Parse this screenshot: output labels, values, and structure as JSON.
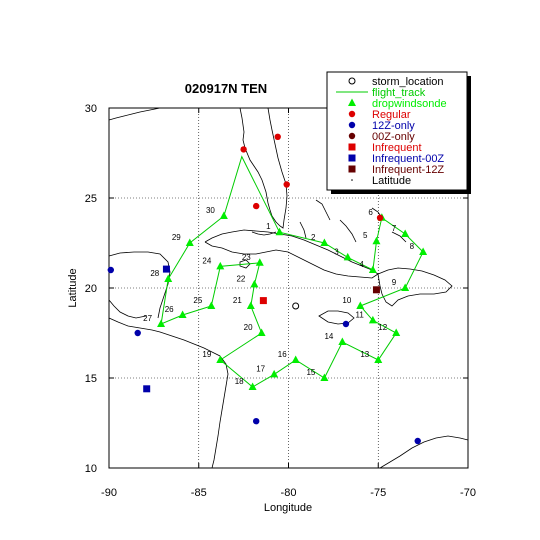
{
  "chart_data": {
    "type": "scatter",
    "title": "020917N TEN",
    "xlabel": "Longitude",
    "ylabel": "Latitude",
    "xlim": [
      -90,
      -70
    ],
    "ylim": [
      10,
      30
    ],
    "xticks": [
      -90,
      -85,
      -80,
      -75,
      -70
    ],
    "yticks": [
      10,
      15,
      20,
      25,
      30
    ],
    "xtick_labels": [
      "-90",
      "-85",
      "-80",
      "-75",
      "-70"
    ],
    "ytick_labels": [
      "10",
      "15",
      "20",
      "25",
      "30"
    ],
    "grid": "dotted",
    "legend_position": "top-right",
    "legend": [
      {
        "label": "storm_location",
        "marker": "circle-open",
        "color": "#000000"
      },
      {
        "label": "flight_track",
        "marker": "line",
        "color": "#00cc00"
      },
      {
        "label": "dropwindsonde",
        "marker": "triangle",
        "color": "#00ee00"
      },
      {
        "label": "Regular",
        "marker": "circle",
        "color": "#dd0000"
      },
      {
        "label": "12Z-only",
        "marker": "circle",
        "color": "#0000aa"
      },
      {
        "label": "00Z-only",
        "marker": "circle",
        "color": "#660000"
      },
      {
        "label": "Infrequent",
        "marker": "square",
        "color": "#dd0000"
      },
      {
        "label": "Infrequent-00Z",
        "marker": "square",
        "color": "#0000aa"
      },
      {
        "label": "Infrequent-12Z",
        "marker": "square",
        "color": "#660000"
      },
      {
        "label": "Latitude",
        "marker": "dot",
        "color": "#000000"
      }
    ],
    "storm_location": {
      "lon": -79.6,
      "lat": 19.0
    },
    "flight_track": [
      {
        "lon": -80.5,
        "lat": 23.1
      },
      {
        "lon": -78.0,
        "lat": 22.5
      },
      {
        "lon": -76.7,
        "lat": 21.7
      },
      {
        "lon": -75.3,
        "lat": 21.0
      },
      {
        "lon": -75.1,
        "lat": 22.6
      },
      {
        "lon": -74.8,
        "lat": 23.9
      },
      {
        "lon": -73.5,
        "lat": 23.0
      },
      {
        "lon": -72.5,
        "lat": 22.0
      },
      {
        "lon": -73.5,
        "lat": 20.0
      },
      {
        "lon": -76.0,
        "lat": 19.0
      },
      {
        "lon": -75.3,
        "lat": 18.2
      },
      {
        "lon": -74.0,
        "lat": 17.5
      },
      {
        "lon": -75.0,
        "lat": 16.0
      },
      {
        "lon": -77.0,
        "lat": 17.0
      },
      {
        "lon": -78.0,
        "lat": 15.0
      },
      {
        "lon": -79.6,
        "lat": 16.0
      },
      {
        "lon": -80.8,
        "lat": 15.2
      },
      {
        "lon": -82.0,
        "lat": 14.5
      },
      {
        "lon": -83.8,
        "lat": 16.0
      },
      {
        "lon": -81.5,
        "lat": 17.5
      },
      {
        "lon": -82.1,
        "lat": 19.0
      },
      {
        "lon": -81.9,
        "lat": 20.2
      },
      {
        "lon": -81.6,
        "lat": 21.4
      },
      {
        "lon": -83.8,
        "lat": 21.2
      },
      {
        "lon": -84.3,
        "lat": 19.0
      },
      {
        "lon": -85.9,
        "lat": 18.5
      },
      {
        "lon": -87.1,
        "lat": 18.0
      },
      {
        "lon": -86.7,
        "lat": 20.5
      },
      {
        "lon": -85.5,
        "lat": 22.5
      },
      {
        "lon": -83.6,
        "lat": 24.0
      },
      {
        "lon": -82.6,
        "lat": 27.3
      },
      {
        "lon": -80.5,
        "lat": 23.1
      }
    ],
    "dropwindsondes": [
      {
        "label": "1",
        "lon": -80.5,
        "lat": 23.1
      },
      {
        "label": "2",
        "lon": -78.0,
        "lat": 22.5
      },
      {
        "label": "3",
        "lon": -76.7,
        "lat": 21.7
      },
      {
        "label": "4",
        "lon": -75.3,
        "lat": 21.0
      },
      {
        "label": "5",
        "lon": -75.1,
        "lat": 22.6
      },
      {
        "label": "6",
        "lon": -74.8,
        "lat": 23.9
      },
      {
        "label": "7",
        "lon": -73.5,
        "lat": 23.0
      },
      {
        "label": "8",
        "lon": -72.5,
        "lat": 22.0
      },
      {
        "label": "9",
        "lon": -73.5,
        "lat": 20.0
      },
      {
        "label": "10",
        "lon": -76.0,
        "lat": 19.0
      },
      {
        "label": "11",
        "lon": -75.3,
        "lat": 18.2
      },
      {
        "label": "12",
        "lon": -74.0,
        "lat": 17.5
      },
      {
        "label": "13",
        "lon": -75.0,
        "lat": 16.0
      },
      {
        "label": "14",
        "lon": -77.0,
        "lat": 17.0
      },
      {
        "label": "15",
        "lon": -78.0,
        "lat": 15.0
      },
      {
        "label": "16",
        "lon": -79.6,
        "lat": 16.0
      },
      {
        "label": "17",
        "lon": -80.8,
        "lat": 15.2
      },
      {
        "label": "18",
        "lon": -82.0,
        "lat": 14.5
      },
      {
        "label": "19",
        "lon": -83.8,
        "lat": 16.0
      },
      {
        "label": "20",
        "lon": -81.5,
        "lat": 17.5
      },
      {
        "label": "21",
        "lon": -82.1,
        "lat": 19.0
      },
      {
        "label": "22",
        "lon": -81.9,
        "lat": 20.2
      },
      {
        "label": "23",
        "lon": -81.6,
        "lat": 21.4
      },
      {
        "label": "24",
        "lon": -83.8,
        "lat": 21.2
      },
      {
        "label": "25",
        "lon": -84.3,
        "lat": 19.0
      },
      {
        "label": "26",
        "lon": -85.9,
        "lat": 18.5
      },
      {
        "label": "27",
        "lon": -87.1,
        "lat": 18.0
      },
      {
        "label": "28",
        "lon": -86.7,
        "lat": 20.5
      },
      {
        "label": "29",
        "lon": -85.5,
        "lat": 22.5
      },
      {
        "label": "30",
        "lon": -83.6,
        "lat": 24.0
      }
    ],
    "stations": [
      {
        "type": "Regular",
        "lon": -80.1,
        "lat": 25.75
      },
      {
        "type": "Regular",
        "lon": -80.6,
        "lat": 28.4
      },
      {
        "type": "Regular",
        "lon": -82.5,
        "lat": 27.7
      },
      {
        "type": "Regular",
        "lon": -81.8,
        "lat": 24.55
      },
      {
        "type": "Regular",
        "lon": -74.9,
        "lat": 23.9
      },
      {
        "type": "12Z-only",
        "lon": -89.9,
        "lat": 21.0
      },
      {
        "type": "12Z-only",
        "lon": -88.4,
        "lat": 17.5
      },
      {
        "type": "12Z-only",
        "lon": -81.8,
        "lat": 12.6
      },
      {
        "type": "12Z-only",
        "lon": -72.8,
        "lat": 11.5
      },
      {
        "type": "12Z-only",
        "lon": -76.8,
        "lat": 18.0
      },
      {
        "type": "Infrequent",
        "lon": -81.4,
        "lat": 19.3
      },
      {
        "type": "Infrequent-00Z",
        "lon": -86.8,
        "lat": 21.05
      },
      {
        "type": "Infrequent-00Z",
        "lon": -87.9,
        "lat": 14.4
      },
      {
        "type": "Infrequent-12Z",
        "lon": -75.1,
        "lat": 19.9
      }
    ]
  }
}
